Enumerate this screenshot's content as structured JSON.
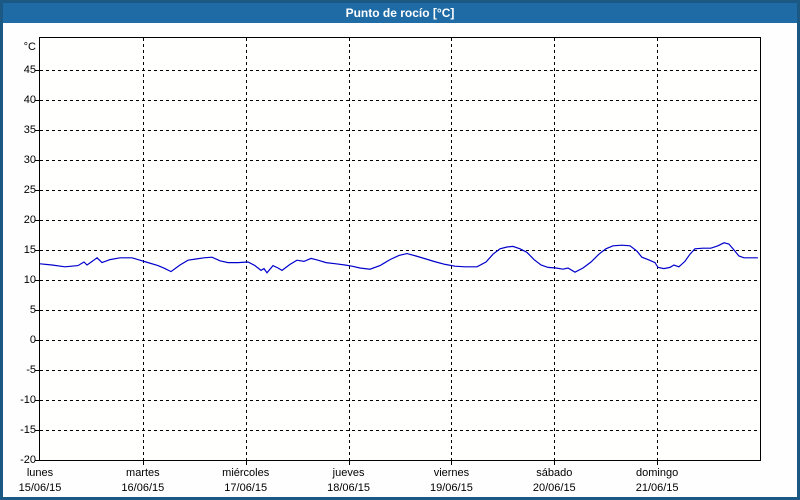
{
  "window": {
    "title": "Punto de rocío [°C]"
  },
  "colors": {
    "outer_border": "#1b5884",
    "title_bar_bg": "#1f6ba6",
    "title_text": "#ffffff",
    "plot_border": "#000000",
    "gridline": "#000000",
    "line": "#0000cc"
  },
  "chart_data": {
    "type": "line",
    "title": "Punto de rocío [°C]",
    "ylabel": "°C",
    "y_min": -20,
    "y_max": 50.333,
    "y_ticks": [
      45,
      40,
      35,
      30,
      25,
      20,
      15,
      10,
      5,
      0,
      -5,
      -10,
      -15,
      -20
    ],
    "grid": "dashed",
    "legend": "none",
    "x_days": [
      {
        "name": "lunes",
        "date": "15/06/15"
      },
      {
        "name": "martes",
        "date": "16/06/15"
      },
      {
        "name": "miércoles",
        "date": "17/06/15"
      },
      {
        "name": "jueves",
        "date": "18/06/15"
      },
      {
        "name": "viernes",
        "date": "19/06/15"
      },
      {
        "name": "sábado",
        "date": "20/06/15"
      },
      {
        "name": "domingo",
        "date": "21/06/15"
      }
    ],
    "series": [
      {
        "name": "Punto de rocío",
        "color": "#0000cc",
        "points": [
          [
            0.0,
            12.7
          ],
          [
            0.117,
            12.5
          ],
          [
            0.243,
            12.2
          ],
          [
            0.369,
            12.4
          ],
          [
            0.428,
            13.0
          ],
          [
            0.457,
            12.5
          ],
          [
            0.515,
            13.2
          ],
          [
            0.554,
            13.7
          ],
          [
            0.603,
            12.9
          ],
          [
            0.681,
            13.4
          ],
          [
            0.778,
            13.7
          ],
          [
            0.894,
            13.7
          ],
          [
            0.972,
            13.3
          ],
          [
            1.031,
            13.0
          ],
          [
            1.147,
            12.4
          ],
          [
            1.215,
            11.9
          ],
          [
            1.274,
            11.4
          ],
          [
            1.361,
            12.5
          ],
          [
            1.439,
            13.3
          ],
          [
            1.517,
            13.5
          ],
          [
            1.594,
            13.7
          ],
          [
            1.672,
            13.8
          ],
          [
            1.75,
            13.2
          ],
          [
            1.828,
            12.9
          ],
          [
            1.925,
            12.9
          ],
          [
            2.022,
            13.0
          ],
          [
            2.09,
            12.4
          ],
          [
            2.149,
            11.6
          ],
          [
            2.178,
            11.9
          ],
          [
            2.207,
            11.2
          ],
          [
            2.265,
            12.4
          ],
          [
            2.314,
            12.0
          ],
          [
            2.353,
            11.6
          ],
          [
            2.431,
            12.6
          ],
          [
            2.499,
            13.3
          ],
          [
            2.567,
            13.1
          ],
          [
            2.635,
            13.6
          ],
          [
            2.703,
            13.3
          ],
          [
            2.781,
            12.9
          ],
          [
            2.878,
            12.7
          ],
          [
            2.965,
            12.5
          ],
          [
            3.033,
            12.3
          ],
          [
            3.111,
            12.0
          ],
          [
            3.208,
            11.8
          ],
          [
            3.306,
            12.4
          ],
          [
            3.403,
            13.4
          ],
          [
            3.49,
            14.1
          ],
          [
            3.568,
            14.4
          ],
          [
            3.656,
            14.0
          ],
          [
            3.753,
            13.5
          ],
          [
            3.85,
            13.0
          ],
          [
            3.938,
            12.6
          ],
          [
            4.035,
            12.3
          ],
          [
            4.132,
            12.2
          ],
          [
            4.249,
            12.2
          ],
          [
            4.336,
            13.0
          ],
          [
            4.404,
            14.3
          ],
          [
            4.472,
            15.2
          ],
          [
            4.54,
            15.5
          ],
          [
            4.599,
            15.6
          ],
          [
            4.667,
            15.2
          ],
          [
            4.735,
            14.6
          ],
          [
            4.803,
            13.4
          ],
          [
            4.871,
            12.5
          ],
          [
            4.939,
            12.1
          ],
          [
            5.017,
            12.0
          ],
          [
            5.085,
            11.8
          ],
          [
            5.133,
            12.0
          ],
          [
            5.201,
            11.3
          ],
          [
            5.279,
            12.0
          ],
          [
            5.357,
            13.0
          ],
          [
            5.434,
            14.3
          ],
          [
            5.502,
            15.2
          ],
          [
            5.571,
            15.7
          ],
          [
            5.658,
            15.8
          ],
          [
            5.736,
            15.7
          ],
          [
            5.804,
            14.8
          ],
          [
            5.852,
            13.8
          ],
          [
            5.911,
            13.4
          ],
          [
            5.979,
            12.9
          ],
          [
            6.008,
            12.1
          ],
          [
            6.066,
            11.9
          ],
          [
            6.125,
            12.1
          ],
          [
            6.163,
            12.5
          ],
          [
            6.212,
            12.2
          ],
          [
            6.27,
            13.1
          ],
          [
            6.319,
            14.3
          ],
          [
            6.367,
            15.2
          ],
          [
            6.445,
            15.3
          ],
          [
            6.523,
            15.3
          ],
          [
            6.591,
            15.7
          ],
          [
            6.65,
            16.2
          ],
          [
            6.698,
            16.0
          ],
          [
            6.747,
            15.0
          ],
          [
            6.795,
            14.0
          ],
          [
            6.844,
            13.7
          ],
          [
            6.922,
            13.7
          ],
          [
            6.98,
            13.7
          ]
        ]
      }
    ]
  }
}
